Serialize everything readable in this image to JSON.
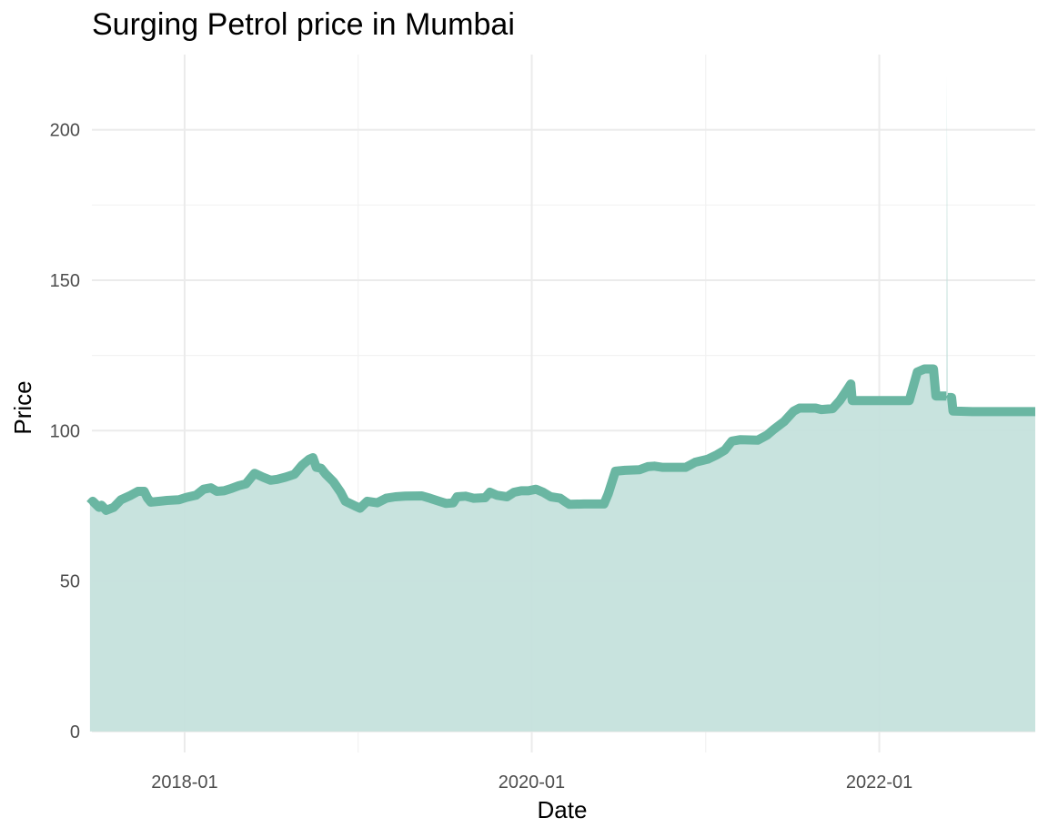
{
  "chart_data": {
    "type": "area",
    "title": "Surging Petrol price in Mumbai",
    "xlabel": "Date",
    "ylabel": "Price",
    "grid": true,
    "legend": "none",
    "x_range": [
      "2017-06-20",
      "2022-11-25"
    ],
    "ylim": [
      -7,
      225
    ],
    "x_ticks": [
      {
        "date": "2018-01-01",
        "label": "2018-01"
      },
      {
        "date": "2020-01-01",
        "label": "2020-01"
      },
      {
        "date": "2022-01-01",
        "label": "2022-01"
      }
    ],
    "x_minor_ticks": [
      "2017-01-01",
      "2019-01-01",
      "2021-01-01",
      "2023-01-01"
    ],
    "y_ticks": [
      0,
      50,
      100,
      150,
      200
    ],
    "y_minor_ticks": [
      25,
      75,
      125,
      175
    ],
    "colors": {
      "line": "#6ab6a2",
      "fill": "#c5e1dc"
    },
    "series": [
      {
        "values": [
          [
            "2017-06-16",
            75.5
          ],
          [
            "2017-06-22",
            76.5
          ],
          [
            "2017-07-05",
            74.5
          ],
          [
            "2017-07-10",
            75.2
          ],
          [
            "2017-07-20",
            73.5
          ],
          [
            "2017-08-05",
            74.5
          ],
          [
            "2017-08-20",
            77.0
          ],
          [
            "2017-09-10",
            78.5
          ],
          [
            "2017-09-25",
            79.8
          ],
          [
            "2017-10-08",
            79.8
          ],
          [
            "2017-10-15",
            77.5
          ],
          [
            "2017-10-22",
            76.2
          ],
          [
            "2017-11-10",
            76.5
          ],
          [
            "2017-11-25",
            76.8
          ],
          [
            "2017-12-20",
            77.0
          ],
          [
            "2018-01-05",
            77.8
          ],
          [
            "2018-01-25",
            78.5
          ],
          [
            "2018-02-10",
            80.5
          ],
          [
            "2018-02-25",
            81.0
          ],
          [
            "2018-03-10",
            79.8
          ],
          [
            "2018-03-25",
            80.0
          ],
          [
            "2018-04-10",
            80.8
          ],
          [
            "2018-04-25",
            81.7
          ],
          [
            "2018-05-10",
            82.3
          ],
          [
            "2018-05-28",
            85.8
          ],
          [
            "2018-06-15",
            84.5
          ],
          [
            "2018-07-01",
            83.5
          ],
          [
            "2018-07-15",
            83.8
          ],
          [
            "2018-08-01",
            84.5
          ],
          [
            "2018-08-20",
            85.5
          ],
          [
            "2018-09-05",
            88.5
          ],
          [
            "2018-09-20",
            90.5
          ],
          [
            "2018-09-28",
            91.0
          ],
          [
            "2018-10-05",
            87.8
          ],
          [
            "2018-10-15",
            87.5
          ],
          [
            "2018-10-25",
            85.5
          ],
          [
            "2018-11-10",
            83.0
          ],
          [
            "2018-11-25",
            79.5
          ],
          [
            "2018-12-05",
            76.5
          ],
          [
            "2018-12-25",
            75.0
          ],
          [
            "2019-01-05",
            74.2
          ],
          [
            "2019-01-20",
            76.5
          ],
          [
            "2019-02-10",
            76.0
          ],
          [
            "2019-03-01",
            77.5
          ],
          [
            "2019-03-20",
            78.0
          ],
          [
            "2019-04-10",
            78.2
          ],
          [
            "2019-05-15",
            78.3
          ],
          [
            "2019-06-01",
            77.5
          ],
          [
            "2019-06-20",
            76.5
          ],
          [
            "2019-07-05",
            75.8
          ],
          [
            "2019-07-20",
            76.0
          ],
          [
            "2019-07-28",
            78.0
          ],
          [
            "2019-08-15",
            78.2
          ],
          [
            "2019-09-01",
            77.5
          ],
          [
            "2019-09-25",
            77.7
          ],
          [
            "2019-10-05",
            79.5
          ],
          [
            "2019-10-20",
            78.5
          ],
          [
            "2019-11-10",
            78.0
          ],
          [
            "2019-11-25",
            79.5
          ],
          [
            "2019-12-10",
            80.0
          ],
          [
            "2019-12-25",
            80.0
          ],
          [
            "2020-01-10",
            80.5
          ],
          [
            "2020-01-25",
            79.5
          ],
          [
            "2020-02-10",
            78.0
          ],
          [
            "2020-03-01",
            77.5
          ],
          [
            "2020-03-10",
            76.5
          ],
          [
            "2020-03-20",
            75.5
          ],
          [
            "2020-04-20",
            75.6
          ],
          [
            "2020-05-20",
            75.6
          ],
          [
            "2020-06-01",
            75.6
          ],
          [
            "2020-06-10",
            79.0
          ],
          [
            "2020-06-25",
            86.5
          ],
          [
            "2020-07-15",
            86.8
          ],
          [
            "2020-08-15",
            87.0
          ],
          [
            "2020-09-01",
            88.0
          ],
          [
            "2020-09-15",
            88.2
          ],
          [
            "2020-10-01",
            87.8
          ],
          [
            "2020-11-20",
            87.8
          ],
          [
            "2020-12-10",
            89.5
          ],
          [
            "2021-01-05",
            90.5
          ],
          [
            "2021-01-25",
            92.0
          ],
          [
            "2021-02-10",
            93.5
          ],
          [
            "2021-02-25",
            96.5
          ],
          [
            "2021-03-15",
            97.0
          ],
          [
            "2021-04-20",
            96.8
          ],
          [
            "2021-05-10",
            98.5
          ],
          [
            "2021-05-25",
            100.5
          ],
          [
            "2021-06-15",
            103.0
          ],
          [
            "2021-07-05",
            106.5
          ],
          [
            "2021-07-17",
            107.5
          ],
          [
            "2021-08-20",
            107.5
          ],
          [
            "2021-09-01",
            107.0
          ],
          [
            "2021-09-25",
            107.3
          ],
          [
            "2021-10-10",
            110.0
          ],
          [
            "2021-10-25",
            113.5
          ],
          [
            "2021-11-02",
            115.5
          ],
          [
            "2021-11-05",
            110.0
          ],
          [
            "2021-12-15",
            110.0
          ],
          [
            "2022-02-20",
            110.0
          ],
          [
            "2022-03-05",
            110.0
          ],
          [
            "2022-03-22",
            119.5
          ],
          [
            "2022-04-06",
            120.5
          ],
          [
            "2022-04-25",
            120.5
          ],
          [
            "2022-04-30",
            111.5
          ],
          [
            "2022-05-22",
            111.5
          ],
          [
            "2022-05-23",
            218.0
          ],
          [
            "2022-05-24",
            180.0
          ],
          [
            "2022-05-25",
            111.0
          ],
          [
            "2022-06-02",
            111.0
          ],
          [
            "2022-06-05",
            106.5
          ],
          [
            "2022-07-15",
            106.3
          ],
          [
            "2022-11-25",
            106.3
          ]
        ]
      }
    ]
  }
}
